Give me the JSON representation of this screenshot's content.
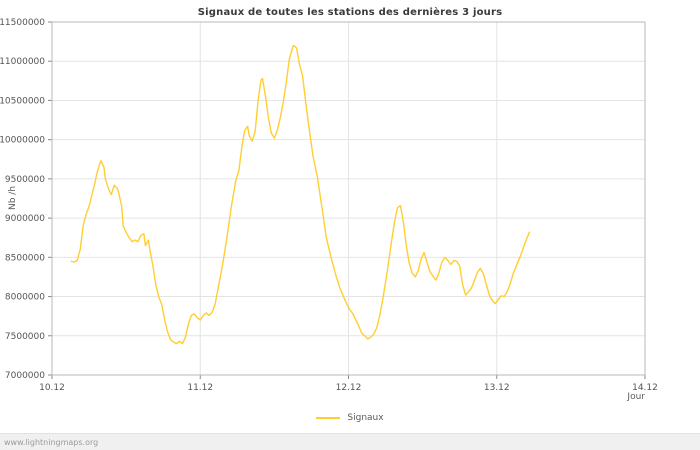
{
  "page": {
    "watermark": "www.lightningmaps.org"
  },
  "chart_data": {
    "type": "line",
    "title": "Signaux de toutes les stations des dernières 3 jours",
    "xlabel": "Jour",
    "ylabel": "Nb /h",
    "grid": true,
    "legend_position": "bottom-center",
    "x_ticks": [
      "10.12",
      "11.12",
      "12.12",
      "13.12",
      "14.12"
    ],
    "x_tick_values": [
      0,
      1,
      2,
      3,
      4
    ],
    "xlim": [
      0,
      4
    ],
    "ylim": [
      7000000,
      11500000
    ],
    "y_tick_step": 500000,
    "line_color": "#ffce31",
    "legend": [
      {
        "label": "Signaux",
        "color": "#ffce31"
      }
    ],
    "series": [
      {
        "name": "Signaux",
        "color": "#ffce31",
        "points": [
          [
            0.13,
            8450000
          ],
          [
            0.15,
            8440000
          ],
          [
            0.17,
            8460000
          ],
          [
            0.19,
            8600000
          ],
          [
            0.21,
            8900000
          ],
          [
            0.23,
            9050000
          ],
          [
            0.25,
            9150000
          ],
          [
            0.27,
            9300000
          ],
          [
            0.29,
            9450000
          ],
          [
            0.3,
            9550000
          ],
          [
            0.32,
            9680000
          ],
          [
            0.33,
            9730000
          ],
          [
            0.35,
            9650000
          ],
          [
            0.36,
            9500000
          ],
          [
            0.38,
            9380000
          ],
          [
            0.4,
            9300000
          ],
          [
            0.42,
            9420000
          ],
          [
            0.44,
            9380000
          ],
          [
            0.45,
            9320000
          ],
          [
            0.47,
            9150000
          ],
          [
            0.48,
            8900000
          ],
          [
            0.5,
            8820000
          ],
          [
            0.52,
            8750000
          ],
          [
            0.54,
            8700000
          ],
          [
            0.56,
            8720000
          ],
          [
            0.58,
            8700000
          ],
          [
            0.6,
            8780000
          ],
          [
            0.62,
            8800000
          ],
          [
            0.63,
            8650000
          ],
          [
            0.65,
            8720000
          ],
          [
            0.66,
            8600000
          ],
          [
            0.68,
            8400000
          ],
          [
            0.7,
            8150000
          ],
          [
            0.72,
            8000000
          ],
          [
            0.74,
            7900000
          ],
          [
            0.76,
            7700000
          ],
          [
            0.78,
            7550000
          ],
          [
            0.8,
            7450000
          ],
          [
            0.82,
            7420000
          ],
          [
            0.84,
            7400000
          ],
          [
            0.86,
            7430000
          ],
          [
            0.88,
            7400000
          ],
          [
            0.9,
            7480000
          ],
          [
            0.92,
            7650000
          ],
          [
            0.94,
            7760000
          ],
          [
            0.96,
            7780000
          ],
          [
            0.98,
            7730000
          ],
          [
            1.0,
            7700000
          ],
          [
            1.02,
            7760000
          ],
          [
            1.04,
            7790000
          ],
          [
            1.06,
            7760000
          ],
          [
            1.08,
            7800000
          ],
          [
            1.1,
            7900000
          ],
          [
            1.12,
            8100000
          ],
          [
            1.15,
            8400000
          ],
          [
            1.18,
            8750000
          ],
          [
            1.21,
            9150000
          ],
          [
            1.24,
            9480000
          ],
          [
            1.26,
            9600000
          ],
          [
            1.28,
            9900000
          ],
          [
            1.3,
            10120000
          ],
          [
            1.32,
            10170000
          ],
          [
            1.33,
            10050000
          ],
          [
            1.35,
            9980000
          ],
          [
            1.37,
            10100000
          ],
          [
            1.39,
            10500000
          ],
          [
            1.41,
            10760000
          ],
          [
            1.42,
            10780000
          ],
          [
            1.44,
            10550000
          ],
          [
            1.46,
            10280000
          ],
          [
            1.48,
            10080000
          ],
          [
            1.5,
            10020000
          ],
          [
            1.52,
            10120000
          ],
          [
            1.54,
            10280000
          ],
          [
            1.56,
            10480000
          ],
          [
            1.58,
            10720000
          ],
          [
            1.6,
            11020000
          ],
          [
            1.62,
            11160000
          ],
          [
            1.63,
            11200000
          ],
          [
            1.65,
            11170000
          ],
          [
            1.67,
            10950000
          ],
          [
            1.69,
            10820000
          ],
          [
            1.71,
            10500000
          ],
          [
            1.73,
            10200000
          ],
          [
            1.76,
            9800000
          ],
          [
            1.79,
            9520000
          ],
          [
            1.82,
            9150000
          ],
          [
            1.85,
            8750000
          ],
          [
            1.88,
            8520000
          ],
          [
            1.91,
            8300000
          ],
          [
            1.94,
            8120000
          ],
          [
            1.97,
            7980000
          ],
          [
            1.99,
            7900000
          ],
          [
            2.01,
            7830000
          ],
          [
            2.03,
            7780000
          ],
          [
            2.05,
            7700000
          ],
          [
            2.07,
            7620000
          ],
          [
            2.09,
            7530000
          ],
          [
            2.11,
            7500000
          ],
          [
            2.13,
            7460000
          ],
          [
            2.15,
            7480000
          ],
          [
            2.17,
            7520000
          ],
          [
            2.19,
            7600000
          ],
          [
            2.21,
            7750000
          ],
          [
            2.23,
            7950000
          ],
          [
            2.26,
            8300000
          ],
          [
            2.29,
            8700000
          ],
          [
            2.31,
            8950000
          ],
          [
            2.33,
            9130000
          ],
          [
            2.35,
            9160000
          ],
          [
            2.37,
            8950000
          ],
          [
            2.39,
            8650000
          ],
          [
            2.41,
            8420000
          ],
          [
            2.43,
            8300000
          ],
          [
            2.45,
            8250000
          ],
          [
            2.47,
            8330000
          ],
          [
            2.49,
            8480000
          ],
          [
            2.51,
            8560000
          ],
          [
            2.53,
            8430000
          ],
          [
            2.55,
            8320000
          ],
          [
            2.57,
            8260000
          ],
          [
            2.59,
            8210000
          ],
          [
            2.61,
            8300000
          ],
          [
            2.63,
            8440000
          ],
          [
            2.65,
            8500000
          ],
          [
            2.67,
            8460000
          ],
          [
            2.69,
            8410000
          ],
          [
            2.71,
            8460000
          ],
          [
            2.73,
            8450000
          ],
          [
            2.75,
            8390000
          ],
          [
            2.77,
            8150000
          ],
          [
            2.79,
            8020000
          ],
          [
            2.81,
            8060000
          ],
          [
            2.83,
            8110000
          ],
          [
            2.85,
            8210000
          ],
          [
            2.87,
            8310000
          ],
          [
            2.89,
            8360000
          ],
          [
            2.91,
            8290000
          ],
          [
            2.93,
            8150000
          ],
          [
            2.95,
            8020000
          ],
          [
            2.97,
            7950000
          ],
          [
            2.99,
            7910000
          ],
          [
            3.01,
            7960000
          ],
          [
            3.03,
            8010000
          ],
          [
            3.05,
            8000000
          ],
          [
            3.07,
            8060000
          ],
          [
            3.09,
            8160000
          ],
          [
            3.11,
            8290000
          ],
          [
            3.13,
            8380000
          ],
          [
            3.16,
            8520000
          ],
          [
            3.19,
            8680000
          ],
          [
            3.22,
            8820000
          ]
        ]
      }
    ]
  }
}
